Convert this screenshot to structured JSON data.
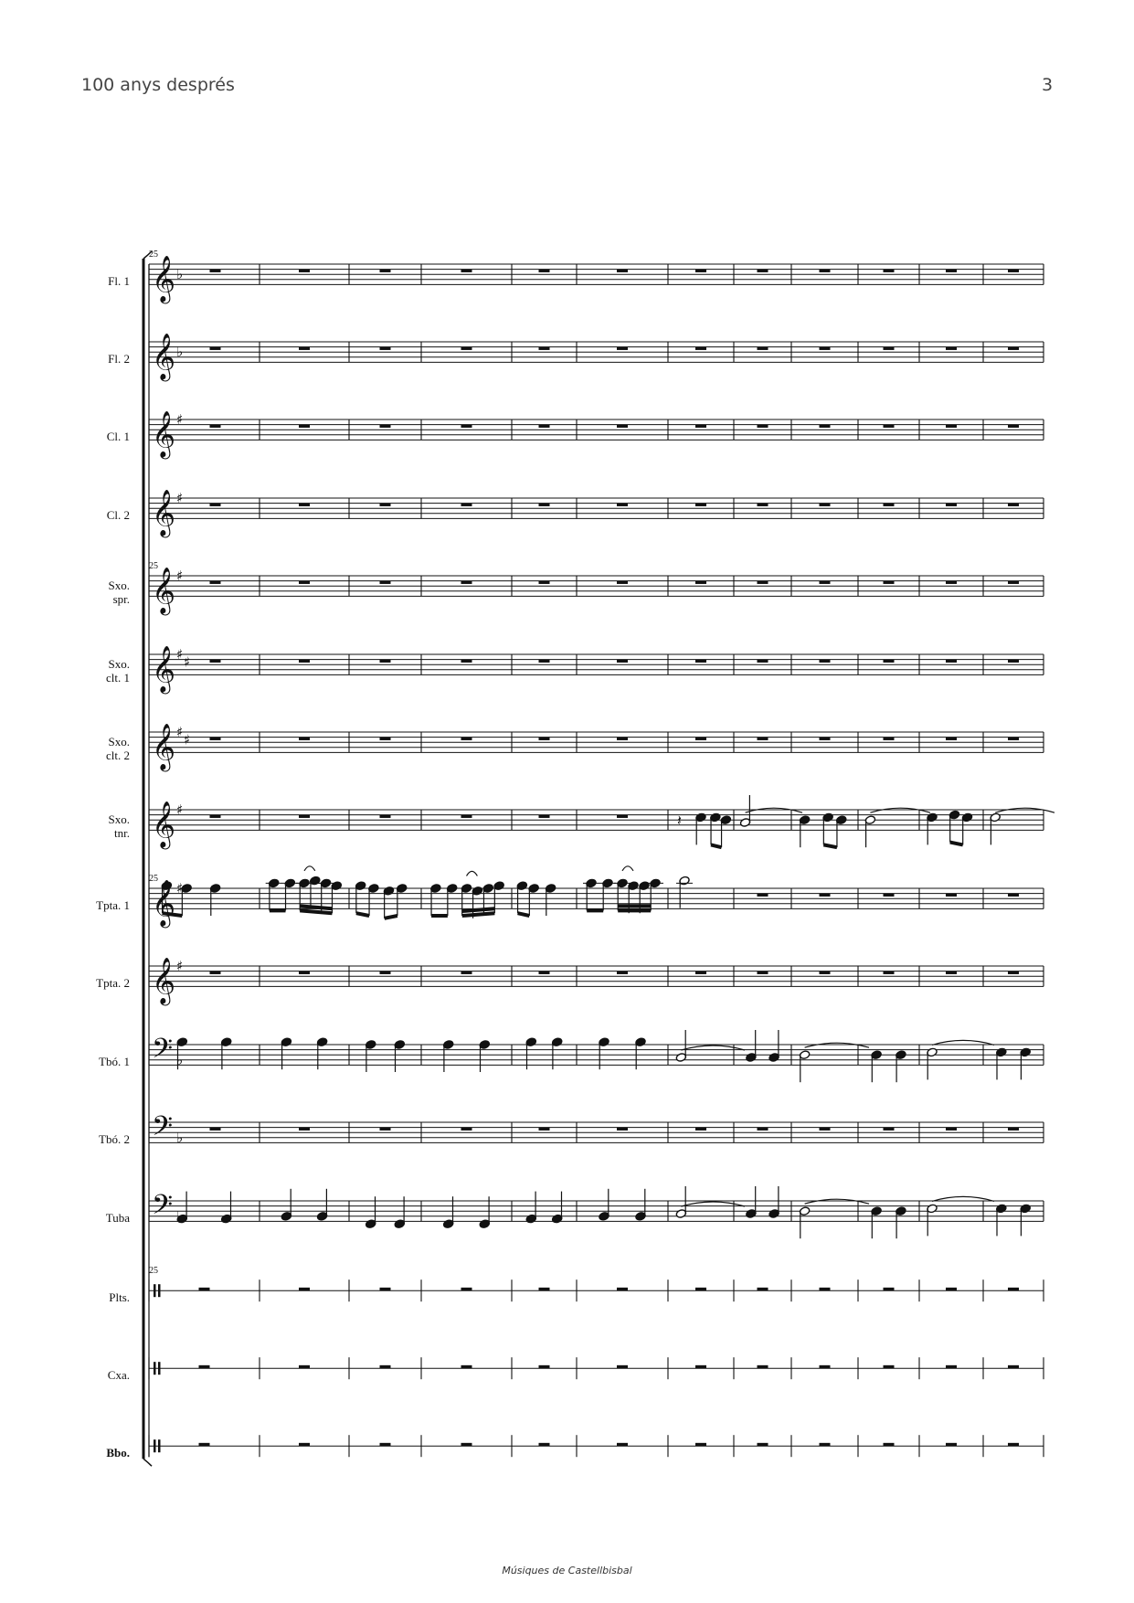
{
  "header": {
    "title": "100 anys després",
    "page_number": "3"
  },
  "footer": {
    "publisher": "Músiques de Castellbisbal"
  },
  "score": {
    "start_bar": "25",
    "measures": 12,
    "instruments": [
      {
        "id": "fl1",
        "name": [
          "Fl. 1"
        ],
        "clef": "treble",
        "key": "b",
        "acc": 1,
        "part": "rests"
      },
      {
        "id": "fl2",
        "name": [
          "Fl. 2"
        ],
        "clef": "treble",
        "key": "b",
        "acc": 1,
        "part": "rests"
      },
      {
        "id": "cl1",
        "name": [
          "Cl. 1"
        ],
        "clef": "treble",
        "key": "#",
        "acc": 1,
        "part": "rests"
      },
      {
        "id": "cl2",
        "name": [
          "Cl. 2"
        ],
        "clef": "treble",
        "key": "#",
        "acc": 1,
        "part": "rests"
      },
      {
        "id": "sxs",
        "name": [
          "Sxo.",
          "spr."
        ],
        "clef": "treble",
        "key": "#",
        "acc": 1,
        "part": "rests",
        "barnum": true
      },
      {
        "id": "sxa1",
        "name": [
          "Sxo.",
          "clt. 1"
        ],
        "clef": "treble",
        "key": "#",
        "acc": 2,
        "part": "rests"
      },
      {
        "id": "sxa2",
        "name": [
          "Sxo.",
          "clt. 2"
        ],
        "clef": "treble",
        "key": "#",
        "acc": 2,
        "part": "rests"
      },
      {
        "id": "sxt",
        "name": [
          "Sxo.",
          "tnr."
        ],
        "clef": "treble",
        "key": "#",
        "acc": 1,
        "part": "tenor"
      },
      {
        "id": "tp1",
        "name": [
          "Tpta. 1"
        ],
        "clef": "treble",
        "key": "#",
        "acc": 1,
        "part": "trumpet",
        "barnum": true
      },
      {
        "id": "tp2",
        "name": [
          "Tpta. 2"
        ],
        "clef": "treble",
        "key": "#",
        "acc": 1,
        "part": "rests"
      },
      {
        "id": "tb1",
        "name": [
          "Tbó. 1"
        ],
        "clef": "bass",
        "key": "b",
        "acc": 1,
        "part": "trombone"
      },
      {
        "id": "tb2",
        "name": [
          "Tbó. 2"
        ],
        "clef": "bass",
        "key": "b",
        "acc": 1,
        "part": "rests"
      },
      {
        "id": "tuba",
        "name": [
          "Tuba"
        ],
        "clef": "bass",
        "key": "b",
        "acc": 1,
        "part": "tuba"
      },
      {
        "id": "plts",
        "name": [
          "Plts."
        ],
        "clef": "perc",
        "key": "",
        "acc": 0,
        "part": "rests",
        "barnum": true
      },
      {
        "id": "cxa",
        "name": [
          "Cxa."
        ],
        "clef": "perc",
        "key": "",
        "acc": 0,
        "part": "rests"
      },
      {
        "id": "bbo",
        "name": [
          "Bbo."
        ],
        "clef": "perc",
        "key": "",
        "acc": 0,
        "part": "rests"
      }
    ]
  }
}
